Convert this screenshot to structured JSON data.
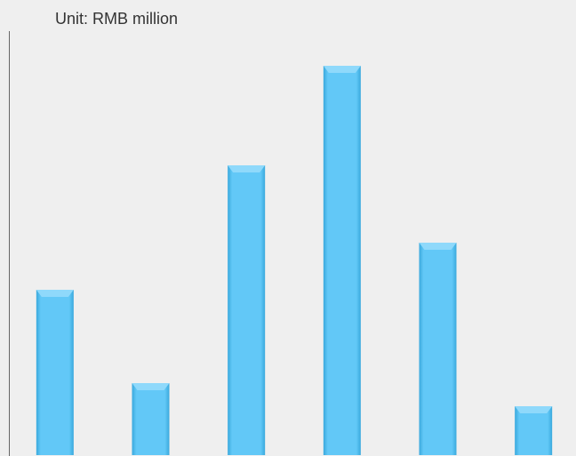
{
  "chart_data": {
    "type": "bar",
    "title": "Unit: RMB million",
    "categories": [
      null,
      null,
      null,
      null,
      null,
      null
    ],
    "values": [
      186,
      81,
      326,
      438,
      239,
      55
    ],
    "color": "#5fc6f6",
    "ylim": [
      0,
      480
    ]
  }
}
